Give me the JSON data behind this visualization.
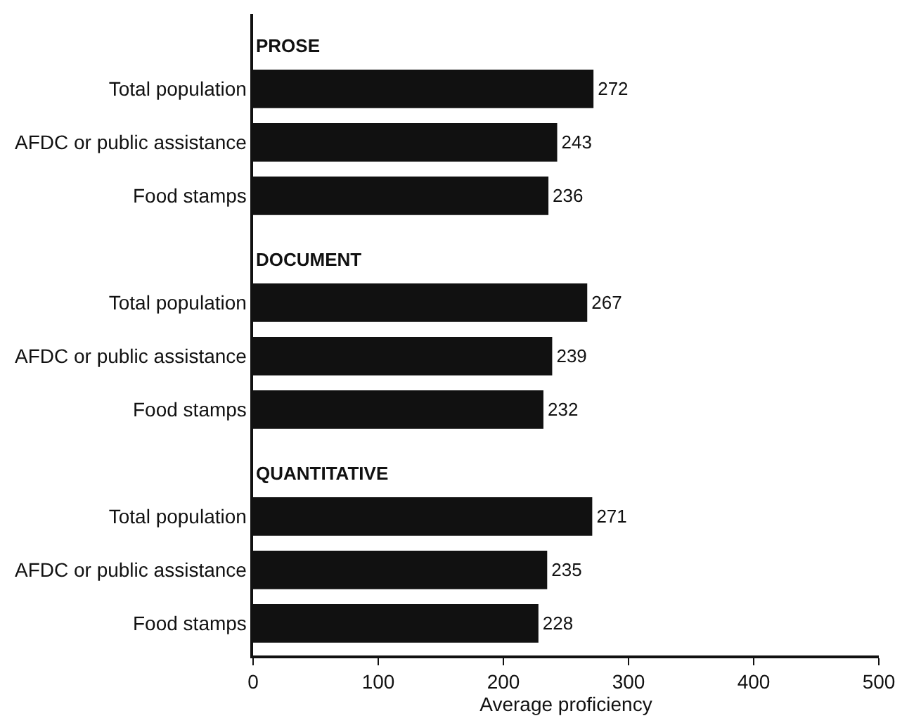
{
  "chart_data": {
    "type": "bar",
    "orientation": "horizontal",
    "xlabel": "Average proficiency",
    "categories": [
      "Total population",
      "AFDC or public assistance",
      "Food stamps",
      "Total population",
      "AFDC or public assistance",
      "Food stamps",
      "Total population",
      "AFDC or public assistance",
      "Food stamps"
    ],
    "values": [
      272,
      243,
      236,
      267,
      239,
      232,
      271,
      235,
      228
    ],
    "color": "#111111",
    "xlim": [
      0,
      500
    ],
    "xticks": [
      0,
      100,
      200,
      300,
      400,
      500
    ],
    "annotations": [
      "PROSE",
      "DOCUMENT",
      "QUANTITATIVE"
    ],
    "data_labels": true
  }
}
